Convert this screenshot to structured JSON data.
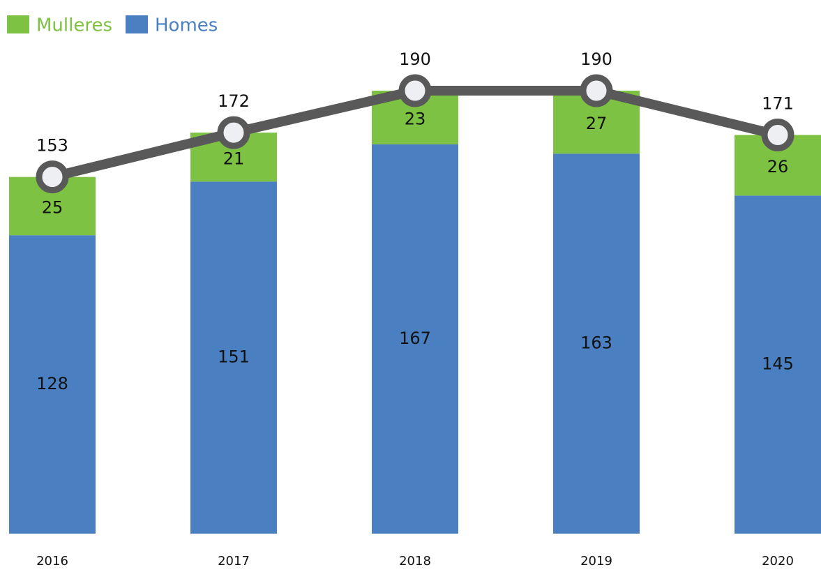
{
  "chart_data": {
    "type": "bar",
    "stacked": true,
    "categories": [
      "2016",
      "2017",
      "2018",
      "2019",
      "2020"
    ],
    "series": [
      {
        "name": "Mulleres",
        "color": "#7dc242",
        "values": [
          25,
          21,
          23,
          27,
          26
        ]
      },
      {
        "name": "Homes",
        "color": "#4a80c2",
        "values": [
          128,
          151,
          167,
          163,
          145
        ]
      }
    ],
    "totals": [
      153,
      172,
      190,
      190,
      171
    ],
    "line_color": "#595959",
    "legend": "top-left"
  }
}
